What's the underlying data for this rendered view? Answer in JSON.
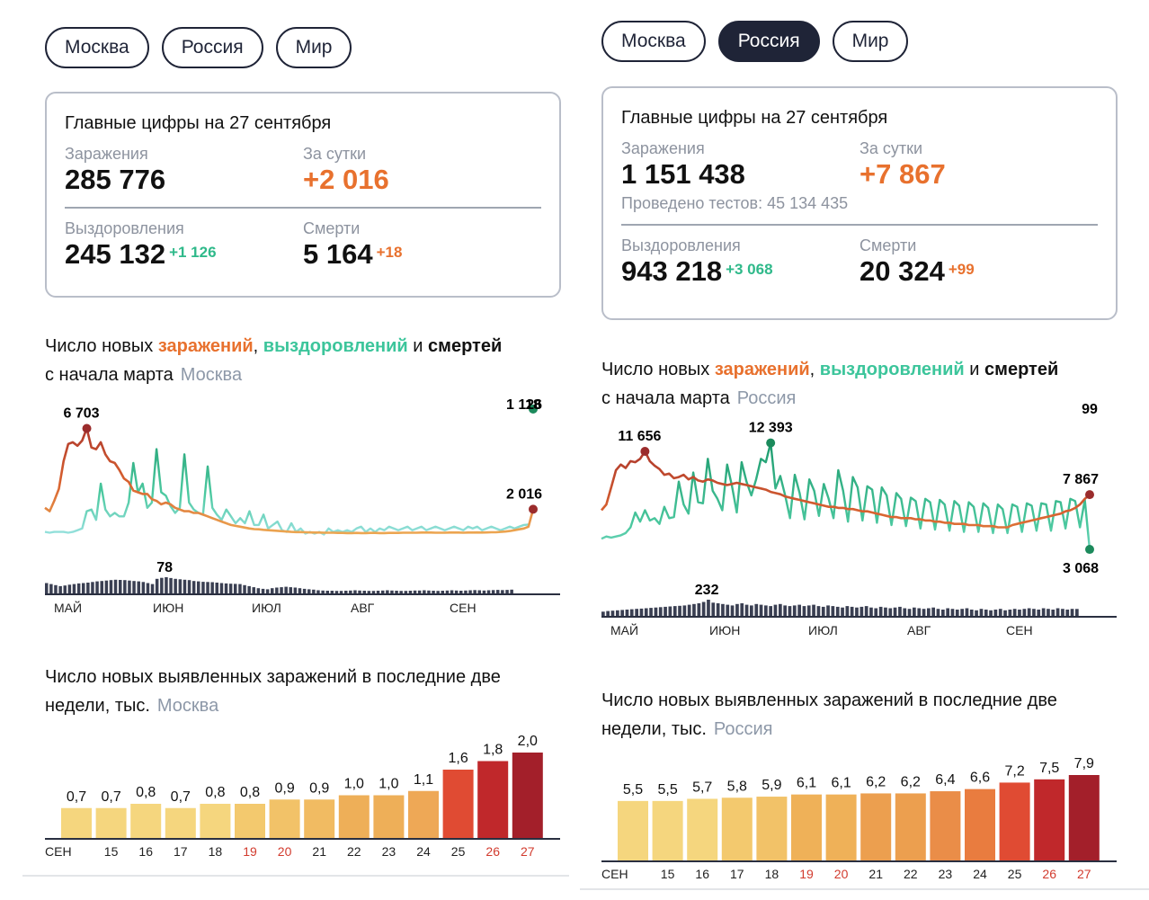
{
  "panels": [
    {
      "id": "moscow",
      "tabs": [
        {
          "label": "Москва",
          "active": true
        },
        {
          "label": "Россия",
          "active": false
        },
        {
          "label": "Мир",
          "active": false
        }
      ],
      "summary": {
        "title": "Главные цифры на 27 сентября",
        "infections_label": "Заражения",
        "infections": "285 776",
        "daily_label": "За сутки",
        "daily": "+2 016",
        "tests": null,
        "recoveries_label": "Выздоровления",
        "recoveries": "245 132",
        "recoveries_delta": "+1 126",
        "deaths_label": "Смерти",
        "deaths": "5 164",
        "deaths_delta": "+18"
      },
      "trend_title": {
        "p1": "Число новых ",
        "inf": "заражений",
        "p2": ", ",
        "rec": "выздоровлений",
        "p3": " и ",
        "dth": "смертей",
        "line2": "с начала марта",
        "region": "Москва"
      },
      "bars_title": {
        "line1": "Число новых выявленных заражений в последние две",
        "line2": "недели, тыс.",
        "region": "Москва"
      }
    },
    {
      "id": "russia",
      "tabs": [
        {
          "label": "Москва",
          "active": false
        },
        {
          "label": "Россия",
          "active": true
        },
        {
          "label": "Мир",
          "active": false
        }
      ],
      "summary": {
        "title": "Главные цифры на 27 сентября",
        "infections_label": "Заражения",
        "infections": "1 151 438",
        "daily_label": "За сутки",
        "daily": "+7 867",
        "tests": "Проведено тестов: 45 134 435",
        "recoveries_label": "Выздоровления",
        "recoveries": "943 218",
        "recoveries_delta": "+3 068",
        "deaths_label": "Смерти",
        "deaths": "20 324",
        "deaths_delta": "+99"
      },
      "trend_title": {
        "p1": "Число новых ",
        "inf": "заражений",
        "p2": ", ",
        "rec": "выздоровлений",
        "p3": " и ",
        "dth": "смертей",
        "line2": "с начала марта",
        "region": "Россия"
      },
      "bars_title": {
        "line1": "Число новых выявленных заражений в последние две",
        "line2": "недели, тыс.",
        "region": "Россия"
      }
    }
  ],
  "chart_data": [
    {
      "type": "line",
      "title": "Число новых заражений, выздоровлений и смертей с начала марта — Москва",
      "x_ticks": [
        "МАЙ",
        "ИЮН",
        "ИЮЛ",
        "АВГ",
        "СЕН"
      ],
      "annotations": {
        "infections_peak": "6 703",
        "infections_last": "2 016",
        "recoveries_last": "1 126",
        "deaths_peak": "78",
        "deaths_last": "18"
      },
      "series": [
        {
          "name": "заражения",
          "values": [
            2100,
            1900,
            2500,
            3200,
            4800,
            5800,
            5900,
            5700,
            6000,
            6703,
            5600,
            5500,
            5900,
            5200,
            4800,
            4700,
            4300,
            3800,
            3600,
            3100,
            3000,
            2900,
            2900,
            2600,
            2500,
            2300,
            2400,
            2300,
            2100,
            2000,
            1900,
            1900,
            1800,
            1800,
            1700,
            1600,
            1500,
            1400,
            1300,
            1200,
            1100,
            1050,
            1000,
            950,
            900,
            860,
            850,
            820,
            800,
            780,
            760,
            740,
            720,
            700,
            690,
            690,
            680,
            670,
            660,
            660,
            650,
            650,
            650,
            640,
            640,
            630,
            630,
            640,
            630,
            630,
            640,
            640,
            630,
            630,
            640,
            640,
            640,
            650,
            650,
            650,
            650,
            660,
            660,
            660,
            650,
            650,
            650,
            660,
            660,
            660,
            650,
            660,
            660,
            670,
            660,
            670,
            680,
            680,
            700,
            720,
            750,
            800,
            850,
            900,
            1000,
            2016
          ]
        },
        {
          "name": "выздоровления",
          "values": [
            700,
            650,
            700,
            700,
            700,
            650,
            700,
            800,
            900,
            1900,
            2000,
            1400,
            3500,
            2000,
            1600,
            1800,
            1600,
            1600,
            2400,
            4700,
            3000,
            3500,
            2100,
            2400,
            5500,
            3000,
            2800,
            2200,
            1800,
            2100,
            5200,
            2400,
            2000,
            1800,
            1700,
            4500,
            2100,
            1700,
            1400,
            2000,
            1600,
            1200,
            1500,
            1200,
            1900,
            1100,
            1100,
            1700,
            900,
            1100,
            1300,
            800,
            700,
            1200,
            700,
            900,
            600,
            700,
            600,
            700,
            550,
            900,
            700,
            800,
            700,
            800,
            700,
            900,
            1000,
            700,
            900,
            700,
            900,
            800,
            1000,
            900,
            800,
            900,
            1000,
            800,
            900,
            1000,
            800,
            900,
            1000,
            900,
            800,
            900,
            1000,
            900,
            800,
            1000,
            900,
            1000,
            800,
            900,
            1000,
            900,
            800,
            900,
            1000,
            900,
            1000,
            1100,
            1126
          ]
        },
        {
          "name": "смерти",
          "values": [
            50,
            45,
            40,
            35,
            38,
            42,
            45,
            48,
            50,
            52,
            55,
            58,
            60,
            62,
            64,
            66,
            65,
            64,
            62,
            60,
            58,
            55,
            50,
            45,
            70,
            75,
            78,
            74,
            70,
            68,
            66,
            64,
            60,
            58,
            56,
            55,
            54,
            52,
            50,
            48,
            47,
            46,
            45,
            40,
            35,
            30,
            25,
            22,
            20,
            25,
            28,
            30,
            32,
            30,
            28,
            25,
            22,
            20,
            18,
            15,
            14,
            13,
            13,
            12,
            12,
            13,
            14,
            15,
            14,
            13,
            12,
            12,
            13,
            14,
            15,
            14,
            13,
            12,
            12,
            13,
            14,
            14,
            15,
            14,
            13,
            12,
            13,
            14,
            15,
            14,
            13,
            14,
            15,
            16,
            15,
            14,
            15,
            16,
            17,
            16,
            17,
            18
          ]
        }
      ]
    },
    {
      "type": "line",
      "title": "Число новых заражений, выздоровлений и смертей с начала марта — Россия",
      "x_ticks": [
        "МАЙ",
        "ИЮН",
        "ИЮЛ",
        "АВГ",
        "СЕН"
      ],
      "annotations": {
        "infections_peak": "11 656",
        "recoveries_peak": "12 393",
        "infections_last": "7 867",
        "recoveries_last": "3 068",
        "deaths_peak": "232",
        "deaths_last": "99"
      },
      "series": [
        {
          "name": "заражения",
          "values": [
            6500,
            7000,
            8500,
            10000,
            10500,
            10200,
            10800,
            10700,
            11000,
            11656,
            10800,
            10400,
            10100,
            9600,
            9700,
            9300,
            9400,
            9600,
            9200,
            9400,
            9100,
            9000,
            9200,
            9100,
            8900,
            8800,
            8700,
            8800,
            8900,
            8800,
            8700,
            8600,
            8500,
            8400,
            8300,
            8100,
            8000,
            7900,
            7700,
            7600,
            7500,
            7400,
            7300,
            7200,
            7100,
            7000,
            6900,
            6800,
            6800,
            6700,
            6700,
            6600,
            6600,
            6500,
            6400,
            6400,
            6300,
            6200,
            6100,
            6000,
            5900,
            5900,
            5800,
            5800,
            5800,
            5700,
            5700,
            5600,
            5600,
            5500,
            5500,
            5400,
            5400,
            5300,
            5300,
            5300,
            5200,
            5200,
            5200,
            5100,
            5100,
            5100,
            5000,
            5000,
            5000,
            5200,
            5300,
            5400,
            5500,
            5600,
            5700,
            5800,
            5900,
            6000,
            6100,
            6200,
            6400,
            6500,
            6700,
            7000,
            7500,
            7867
          ]
        },
        {
          "name": "выздоровления",
          "values": [
            4000,
            4200,
            4100,
            4200,
            4300,
            4500,
            5000,
            6300,
            5500,
            6500,
            5600,
            5800,
            5300,
            6800,
            5800,
            5900,
            9000,
            7000,
            6200,
            9800,
            7200,
            7100,
            11000,
            8200,
            7500,
            6500,
            10500,
            8600,
            6300,
            10700,
            9000,
            7800,
            9200,
            11000,
            10700,
            12393,
            8400,
            9500,
            7800,
            5800,
            9600,
            8000,
            5700,
            9200,
            8200,
            6000,
            8800,
            7500,
            5800,
            10000,
            8200,
            5500,
            9400,
            8500,
            5600,
            8600,
            8300,
            5400,
            8500,
            7800,
            5200,
            8000,
            7500,
            5100,
            7600,
            7300,
            4900,
            7500,
            7200,
            4800,
            7400,
            7000,
            4700,
            7300,
            6900,
            4600,
            7200,
            6800,
            4600,
            7100,
            6700,
            4500,
            7000,
            6600,
            4500,
            7000,
            6800,
            4600,
            7100,
            6900,
            4700,
            7100,
            7000,
            4700,
            7300,
            7200,
            4900,
            7500,
            7300,
            5000,
            7400,
            3068
          ]
        },
        {
          "name": "смерти",
          "values": [
            60,
            70,
            75,
            80,
            85,
            90,
            95,
            100,
            105,
            110,
            115,
            120,
            125,
            130,
            135,
            140,
            145,
            150,
            160,
            170,
            180,
            200,
            232,
            190,
            180,
            170,
            160,
            150,
            170,
            180,
            160,
            150,
            170,
            160,
            150,
            140,
            160,
            170,
            150,
            140,
            150,
            160,
            140,
            150,
            160,
            140,
            130,
            150,
            140,
            130,
            120,
            140,
            130,
            120,
            130,
            140,
            120,
            110,
            130,
            120,
            110,
            120,
            130,
            110,
            100,
            120,
            110,
            100,
            110,
            120,
            100,
            90,
            110,
            100,
            90,
            100,
            110,
            90,
            80,
            100,
            90,
            80,
            90,
            100,
            80,
            90,
            100,
            90,
            100,
            110,
            100,
            90,
            110,
            100,
            90,
            110,
            100,
            90,
            100,
            99
          ]
        }
      ]
    },
    {
      "type": "bar",
      "title": "Число новых выявленных заражений в последние две недели, тыс. — Москва",
      "categories": [
        "СЕН",
        "15",
        "16",
        "17",
        "18",
        "19",
        "20",
        "21",
        "22",
        "23",
        "24",
        "25",
        "26",
        "27"
      ],
      "weekend": [
        false,
        false,
        false,
        false,
        false,
        true,
        true,
        false,
        false,
        false,
        false,
        false,
        true,
        true
      ],
      "values": [
        0.7,
        0.7,
        0.8,
        0.7,
        0.8,
        0.8,
        0.9,
        0.9,
        1.0,
        1.0,
        1.1,
        1.6,
        1.8,
        2.0
      ],
      "labels": [
        "0,7",
        "0,7",
        "0,8",
        "0,7",
        "0,8",
        "0,8",
        "0,9",
        "0,9",
        "1,0",
        "1,0",
        "1,1",
        "1,6",
        "1,8",
        "2,0"
      ],
      "colors": [
        "#f5d67e",
        "#f5d67e",
        "#f5d67e",
        "#f5d67e",
        "#f5d67e",
        "#f3c96e",
        "#f2c268",
        "#f1bb62",
        "#eeaf58",
        "#eeaf58",
        "#eea856",
        "#e04b33",
        "#c0282b",
        "#a31f2a"
      ]
    },
    {
      "type": "bar",
      "title": "Число новых выявленных заражений в последние две недели, тыс. — Россия",
      "categories": [
        "СЕН",
        "15",
        "16",
        "17",
        "18",
        "19",
        "20",
        "21",
        "22",
        "23",
        "24",
        "25",
        "26",
        "27"
      ],
      "weekend": [
        false,
        false,
        false,
        false,
        false,
        true,
        true,
        false,
        false,
        false,
        false,
        false,
        true,
        true
      ],
      "values": [
        5.5,
        5.5,
        5.7,
        5.8,
        5.9,
        6.1,
        6.1,
        6.2,
        6.2,
        6.4,
        6.6,
        7.2,
        7.5,
        7.9
      ],
      "labels": [
        "5,5",
        "5,5",
        "5,7",
        "5,8",
        "5,9",
        "6,1",
        "6,1",
        "6,2",
        "6,2",
        "6,4",
        "6,6",
        "7,2",
        "7,5",
        "7,9"
      ],
      "colors": [
        "#f5d67e",
        "#f5d67e",
        "#f5d67e",
        "#f3c96e",
        "#f2c268",
        "#efb158",
        "#efb158",
        "#ec9f4f",
        "#ec9f4f",
        "#ea8d48",
        "#e97c3f",
        "#e04b33",
        "#c0282b",
        "#a31f2a"
      ]
    }
  ]
}
